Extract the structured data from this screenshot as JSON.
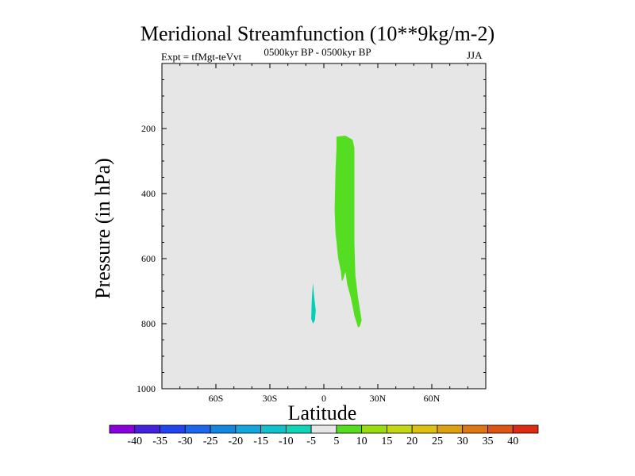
{
  "chart_data": {
    "type": "contour",
    "title": "Meridional Streamfunction (10**9kg/m-2)",
    "subtitle_left": "Expt = tfMgt-teVvt",
    "subtitle_center": "0500kyr BP - 0500kyr BP",
    "subtitle_right": "JJA",
    "xlabel": "Latitude",
    "ylabel": "Pressure (in hPa)",
    "xlim": [
      -90,
      90
    ],
    "ylim": [
      1000,
      0
    ],
    "x_ticks": [
      {
        "value": -60,
        "label": "60S"
      },
      {
        "value": -30,
        "label": "30S"
      },
      {
        "value": 0,
        "label": "0"
      },
      {
        "value": 30,
        "label": "30N"
      },
      {
        "value": 60,
        "label": "60N"
      }
    ],
    "y_ticks": [
      {
        "value": 200,
        "label": "200"
      },
      {
        "value": 400,
        "label": "400"
      },
      {
        "value": 600,
        "label": "600"
      },
      {
        "value": 800,
        "label": "800"
      },
      {
        "value": 1000,
        "label": "1000"
      }
    ],
    "background_color": "#e6e6e6",
    "regions": [
      {
        "name": "positive-cell",
        "level": "5 to 10",
        "color": "#55dd22",
        "points": [
          [
            7,
            225
          ],
          [
            12,
            222
          ],
          [
            16,
            235
          ],
          [
            17,
            260
          ],
          [
            17,
            400
          ],
          [
            17,
            550
          ],
          [
            17.5,
            650
          ],
          [
            19,
            720
          ],
          [
            21,
            790
          ],
          [
            20,
            808
          ],
          [
            19,
            812
          ],
          [
            17,
            775
          ],
          [
            15,
            720
          ],
          [
            13,
            680
          ],
          [
            12,
            640
          ],
          [
            11,
            660
          ],
          [
            10,
            670
          ],
          [
            9.5,
            640
          ],
          [
            8,
            600
          ],
          [
            6.5,
            520
          ],
          [
            6,
            450
          ],
          [
            6.5,
            330
          ],
          [
            7,
            260
          ]
        ]
      },
      {
        "name": "negative-cell",
        "level": "-10 to -5",
        "color": "#00d0b8",
        "points": [
          [
            -6,
            675
          ],
          [
            -5.5,
            710
          ],
          [
            -4.5,
            760
          ],
          [
            -5,
            790
          ],
          [
            -6,
            800
          ],
          [
            -7,
            785
          ],
          [
            -6.8,
            740
          ],
          [
            -6.5,
            705
          ]
        ]
      }
    ],
    "colorbar": {
      "labels": [
        "-40",
        "-35",
        "-30",
        "-25",
        "-20",
        "-15",
        "-10",
        "-5",
        "5",
        "10",
        "15",
        "20",
        "25",
        "30",
        "35",
        "40"
      ],
      "colors": [
        "#8800dd",
        "#4422dd",
        "#2244ee",
        "#1a66ee",
        "#1188dd",
        "#11a6dd",
        "#11c2cc",
        "#11d6b6",
        "#e6e6e6",
        "#55dd22",
        "#99dd11",
        "#c4d811",
        "#ddc011",
        "#dda011",
        "#dd7711",
        "#dd5511",
        "#dd2b11"
      ]
    }
  }
}
